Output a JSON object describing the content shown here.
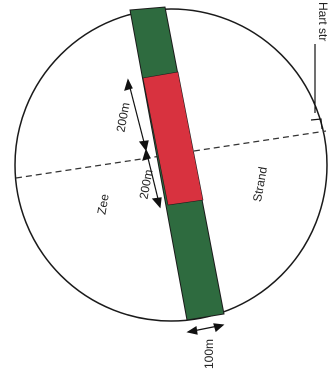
{
  "labels": {
    "sea": "Zee",
    "beach": "Strand",
    "center_marker": "Hart str",
    "upper_distance": "200m",
    "lower_distance": "200m",
    "width": "100m"
  },
  "colors": {
    "zone_core": "#d8323f",
    "zone_buffer": "#2e6b3f",
    "outline": "#1a1a1a"
  }
}
